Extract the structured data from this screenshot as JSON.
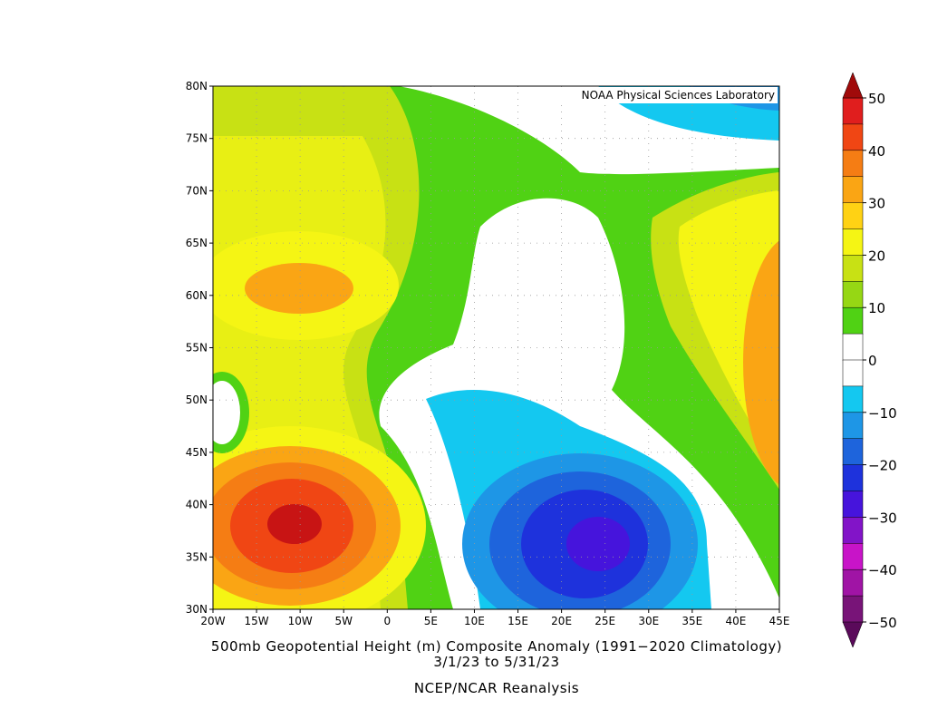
{
  "map": {
    "title": "500mb Geopotential Height (m) Composite Anomaly (1991−2020 Climatology)",
    "dates": "3/1/23  to 5/31/23",
    "source": "NCEP/NCAR Reanalysis",
    "credit": "NOAA Physical Sciences Laboratory",
    "lat_labels": [
      "80N",
      "75N",
      "70N",
      "65N",
      "60N",
      "55N",
      "50N",
      "45N",
      "40N",
      "35N",
      "30N"
    ],
    "lon_labels": [
      "20W",
      "15W",
      "10W",
      "5W",
      "0",
      "5E",
      "10E",
      "15E",
      "20E",
      "25E",
      "30E",
      "35E",
      "40E",
      "45E"
    ],
    "colorbar": {
      "ticks": [
        50,
        40,
        30,
        20,
        10,
        0,
        {
          "value": -10,
          "label": "−10"
        },
        {
          "value": -20,
          "label": "−20"
        },
        {
          "value": -30,
          "label": "−30"
        },
        {
          "value": -40,
          "label": "−40"
        },
        {
          "value": -50,
          "label": "−50"
        }
      ],
      "colors": [
        "#e01e1e",
        "#f04614",
        "#f57d14",
        "#faa514",
        "#ffd214",
        "#f5f514",
        "#c8e114",
        "#96d714",
        "#50d214",
        "#ffffff",
        "#ffffff",
        "#14c8f0",
        "#1e96e6",
        "#1e64dc",
        "#1e32dc",
        "#4614dc",
        "#8214c8",
        "#c814c8",
        "#a014a5",
        "#781478"
      ],
      "above_color": "#a00a0a",
      "below_color": "#5a0a5a"
    }
  }
}
